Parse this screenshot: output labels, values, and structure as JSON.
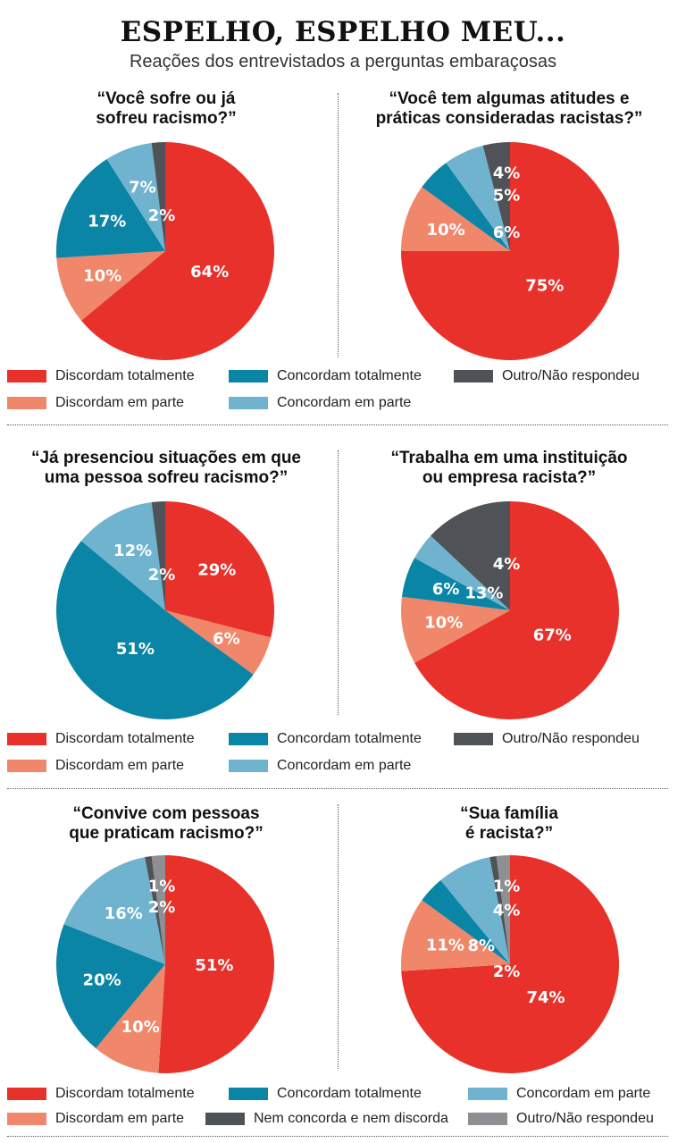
{
  "header": {
    "title": "ESPELHO, ESPELHO MEU...",
    "subtitle": "Reações dos entrevistados a perguntas embaraçosas"
  },
  "colors": {
    "discordam_totalmente": "#e8312a",
    "discordam_em_parte": "#f0876a",
    "concordam_totalmente": "#0b85a6",
    "concordam_em_parte": "#6fb3cf",
    "outro_nao_respondeu": "#4f5256",
    "nem_concorda_nem_discorda": "#4f5256",
    "outro_nao_respondeu_2": "#8d8f92"
  },
  "legends": [
    {
      "items": [
        {
          "label": "Discordam totalmente",
          "color": "#e8312a"
        },
        {
          "label": "Concordam totalmente",
          "color": "#0b85a6"
        },
        {
          "label": "Outro/Não respondeu",
          "color": "#4f5256"
        },
        {
          "label": "Discordam em parte",
          "color": "#f0876a"
        },
        {
          "label": "Concordam em parte",
          "color": "#6fb3cf"
        }
      ]
    },
    {
      "items": [
        {
          "label": "Discordam totalmente",
          "color": "#e8312a"
        },
        {
          "label": "Concordam totalmente",
          "color": "#0b85a6"
        },
        {
          "label": "Outro/Não respondeu",
          "color": "#4f5256"
        },
        {
          "label": "Discordam em parte",
          "color": "#f0876a"
        },
        {
          "label": "Concordam em parte",
          "color": "#6fb3cf"
        }
      ]
    },
    {
      "items": [
        {
          "label": "Discordam totalmente",
          "color": "#e8312a"
        },
        {
          "label": "Concordam totalmente",
          "color": "#0b85a6"
        },
        {
          "label": "Concordam em parte",
          "color": "#6fb3cf"
        },
        {
          "label": "Discordam em parte",
          "color": "#f0876a"
        },
        {
          "label": "Nem concorda e nem discorda",
          "color": "#4f5256"
        },
        {
          "label": "Outro/Não respondeu",
          "color": "#8d8f92"
        }
      ]
    }
  ],
  "chart_data": [
    {
      "type": "pie",
      "question_lines": [
        "“Você sofre ou já",
        "sofreu racismo?”"
      ],
      "slices": [
        {
          "name": "Discordam totalmente",
          "value": 64,
          "label": "64%",
          "color": "#e8312a"
        },
        {
          "name": "Discordam em parte",
          "value": 10,
          "label": "10%",
          "color": "#f0876a"
        },
        {
          "name": "Concordam totalmente",
          "value": 17,
          "label": "17%",
          "color": "#0b85a6"
        },
        {
          "name": "Concordam em parte",
          "value": 7,
          "label": "7%",
          "color": "#6fb3cf"
        },
        {
          "name": "Outro/Não respondeu",
          "value": 2,
          "label": "2%",
          "color": "#4f5256"
        }
      ]
    },
    {
      "type": "pie",
      "question_lines": [
        "“Você tem algumas atitudes e",
        "práticas consideradas racistas?”"
      ],
      "slices": [
        {
          "name": "Discordam totalmente",
          "value": 75,
          "label": "75%",
          "color": "#e8312a"
        },
        {
          "name": "Discordam em parte",
          "value": 10,
          "label": "10%",
          "color": "#f0876a"
        },
        {
          "name": "Concordam totalmente",
          "value": 5,
          "label": "5%",
          "color": "#0b85a6"
        },
        {
          "name": "Concordam em parte",
          "value": 6,
          "label": "6%",
          "color": "#6fb3cf"
        },
        {
          "name": "Outro/Não respondeu",
          "value": 4,
          "label": "4%",
          "color": "#4f5256"
        }
      ]
    },
    {
      "type": "pie",
      "question_lines": [
        "“Já presenciou situações em que",
        "uma pessoa sofreu racismo?”"
      ],
      "slices": [
        {
          "name": "Discordam totalmente",
          "value": 29,
          "label": "29%",
          "color": "#e8312a"
        },
        {
          "name": "Discordam em parte",
          "value": 6,
          "label": "6%",
          "color": "#f0876a"
        },
        {
          "name": "Concordam totalmente",
          "value": 51,
          "label": "51%",
          "color": "#0b85a6"
        },
        {
          "name": "Concordam em parte",
          "value": 12,
          "label": "12%",
          "color": "#6fb3cf"
        },
        {
          "name": "Outro/Não respondeu",
          "value": 2,
          "label": "2%",
          "color": "#4f5256"
        }
      ]
    },
    {
      "type": "pie",
      "question_lines": [
        "“Trabalha em uma instituição",
        "ou empresa racista?”"
      ],
      "slices": [
        {
          "name": "Discordam totalmente",
          "value": 67,
          "label": "67%",
          "color": "#e8312a"
        },
        {
          "name": "Discordam em parte",
          "value": 10,
          "label": "10%",
          "color": "#f0876a"
        },
        {
          "name": "Concordam totalmente",
          "value": 6,
          "label": "6%",
          "color": "#0b85a6"
        },
        {
          "name": "Concordam em parte",
          "value": 4,
          "label": "4%",
          "color": "#6fb3cf"
        },
        {
          "name": "Outro/Não respondeu",
          "value": 13,
          "label": "13%",
          "color": "#4f5256"
        }
      ]
    },
    {
      "type": "pie",
      "question_lines": [
        "“Convive com pessoas",
        "que praticam racismo?”"
      ],
      "slices": [
        {
          "name": "Discordam totalmente",
          "value": 51,
          "label": "51%",
          "color": "#e8312a"
        },
        {
          "name": "Discordam em parte",
          "value": 10,
          "label": "10%",
          "color": "#f0876a"
        },
        {
          "name": "Concordam totalmente",
          "value": 20,
          "label": "20%",
          "color": "#0b85a6"
        },
        {
          "name": "Concordam em parte",
          "value": 16,
          "label": "16%",
          "color": "#6fb3cf"
        },
        {
          "name": "Nem concorda e nem discorda",
          "value": 1,
          "label": "1%",
          "color": "#4f5256"
        },
        {
          "name": "Outro/Não respondeu",
          "value": 2,
          "label": "2%",
          "color": "#8d8f92"
        }
      ]
    },
    {
      "type": "pie",
      "question_lines": [
        "“Sua família",
        "é racista?”"
      ],
      "slices": [
        {
          "name": "Discordam totalmente",
          "value": 74,
          "label": "74%",
          "color": "#e8312a"
        },
        {
          "name": "Discordam em parte",
          "value": 11,
          "label": "11%",
          "color": "#f0876a"
        },
        {
          "name": "Concordam totalmente",
          "value": 4,
          "label": "4%",
          "color": "#0b85a6"
        },
        {
          "name": "Concordam em parte",
          "value": 8,
          "label": "8%",
          "color": "#6fb3cf"
        },
        {
          "name": "Nem concorda e nem discorda",
          "value": 1,
          "label": "1%",
          "color": "#4f5256"
        },
        {
          "name": "Outro/Não respondeu",
          "value": 2,
          "label": "2%",
          "color": "#8d8f92"
        }
      ]
    }
  ]
}
